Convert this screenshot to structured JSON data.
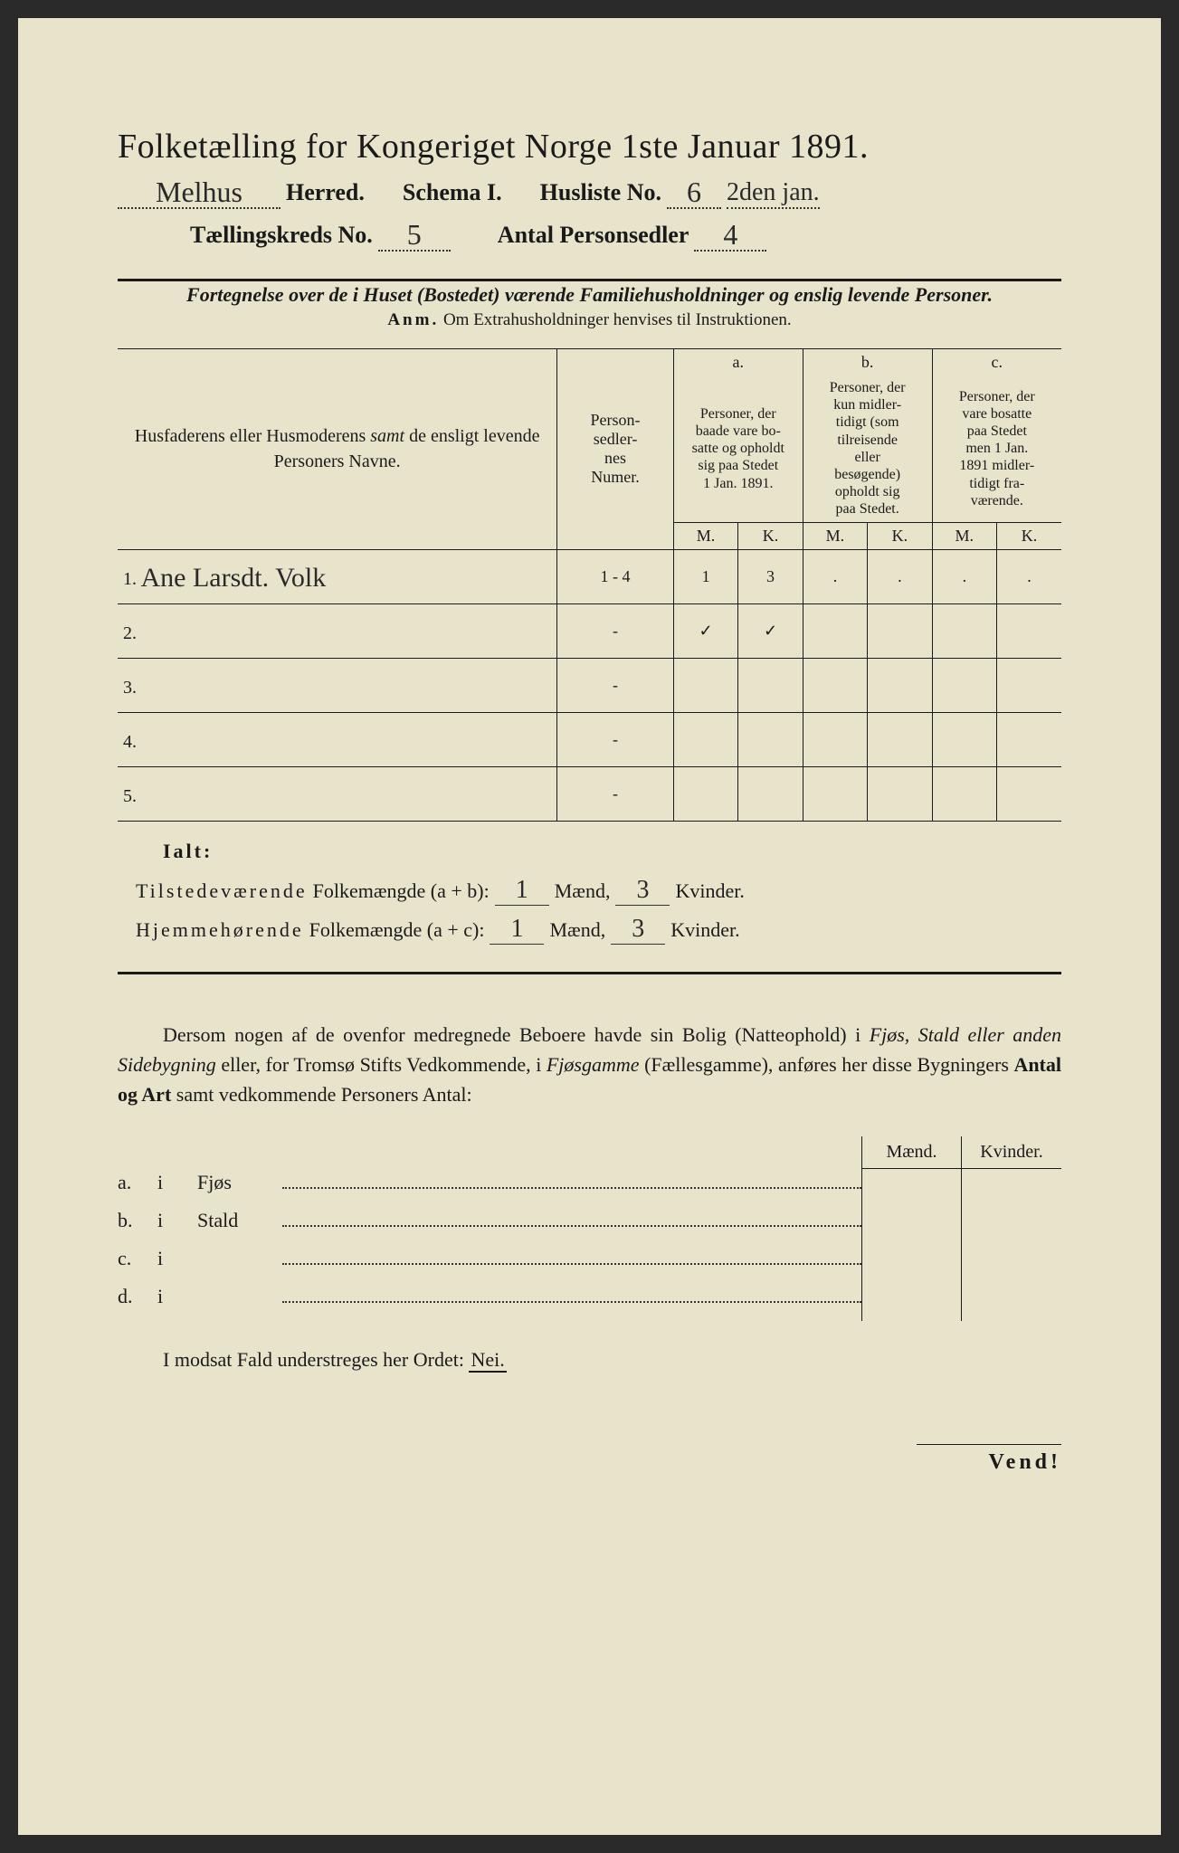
{
  "header": {
    "title": "Folketælling for Kongeriget Norge 1ste Januar 1891.",
    "herred_value": "Melhus",
    "herred_label": "Herred.",
    "schema_label": "Schema I.",
    "husliste_label": "Husliste No.",
    "husliste_value": "6",
    "margin_note": "2den jan.",
    "kreds_label": "Tællingskreds No.",
    "kreds_value": "5",
    "antal_label": "Antal Personsedler",
    "antal_value": "4"
  },
  "subtitle": "Fortegnelse over de i Huset (Bostedet) værende Familiehusholdninger og enslig levende Personer.",
  "anm_label": "Anm.",
  "anm_text": "Om Extrahusholdninger henvises til Instruktionen.",
  "table": {
    "col_name": "Husfaderens eller Husmoderens samt de ensligt levende Personers Navne.",
    "col_num": "Person-sedler-nes Numer.",
    "col_a_label": "a.",
    "col_a_text": "Personer, der baade vare bosatte og opholdt sig paa Stedet 1 Jan. 1891.",
    "col_b_label": "b.",
    "col_b_text": "Personer, der kun midlertidigt (som tilreisende eller besøgende) opholdt sig paa Stedet.",
    "col_c_label": "c.",
    "col_c_text": "Personer, der vare bosatte paa Stedet men 1 Jan. 1891 midlertidigt fraværende.",
    "m_label": "M.",
    "k_label": "K.",
    "rows": [
      {
        "num": "1.",
        "name": "Ane Larsdt. Volk",
        "sedler": "1 - 4",
        "a_m": "1",
        "a_k": "3",
        "b_m": ".",
        "b_k": ".",
        "c_m": ".",
        "c_k": "."
      },
      {
        "num": "2.",
        "name": "",
        "sedler": "-",
        "a_m": "✓",
        "a_k": "✓",
        "b_m": "",
        "b_k": "",
        "c_m": "",
        "c_k": ""
      },
      {
        "num": "3.",
        "name": "",
        "sedler": "-",
        "a_m": "",
        "a_k": "",
        "b_m": "",
        "b_k": "",
        "c_m": "",
        "c_k": ""
      },
      {
        "num": "4.",
        "name": "",
        "sedler": "-",
        "a_m": "",
        "a_k": "",
        "b_m": "",
        "b_k": "",
        "c_m": "",
        "c_k": ""
      },
      {
        "num": "5.",
        "name": "",
        "sedler": "-",
        "a_m": "",
        "a_k": "",
        "b_m": "",
        "b_k": "",
        "c_m": "",
        "c_k": ""
      }
    ]
  },
  "ialt": "Ialt:",
  "summary": {
    "line1_label": "Tilstedeværende",
    "line1_rest": "Folkemængde (a + b):",
    "line2_label": "Hjemmehørende",
    "line2_rest": "Folkemængde (a + c):",
    "maend": "Mænd,",
    "kvinder": "Kvinder.",
    "v1_m": "1",
    "v1_k": "3",
    "v2_m": "1",
    "v2_k": "3"
  },
  "paragraph": "Dersom nogen af de ovenfor medregnede Beboere havde sin Bolig (Natteophold) i Fjøs, Stald eller anden Sidebygning eller, for Tromsø Stifts Vedkommende, i Fjøsgamme (Fællesgamme), anføres her disse Bygningers Antal og Art samt vedkommende Personers Antal:",
  "side": {
    "maend": "Mænd.",
    "kvinder": "Kvinder.",
    "rows": [
      {
        "label": "a.",
        "i": "i",
        "place": "Fjøs"
      },
      {
        "label": "b.",
        "i": "i",
        "place": "Stald"
      },
      {
        "label": "c.",
        "i": "i",
        "place": ""
      },
      {
        "label": "d.",
        "i": "i",
        "place": ""
      }
    ]
  },
  "nei_text": "I modsat Fald understreges her Ordet:",
  "nei": "Nei.",
  "vend": "Vend!"
}
